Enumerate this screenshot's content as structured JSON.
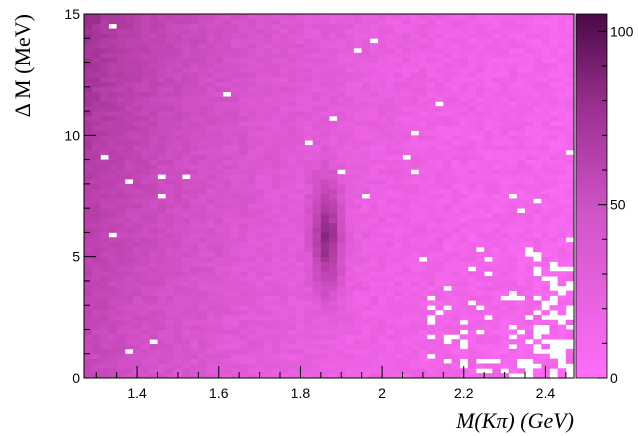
{
  "chart_data": {
    "type": "heatmap",
    "title": "",
    "xlabel": "M(Kπ) (GeV)",
    "ylabel": "Δ M (MeV)",
    "xlim": [
      1.27,
      2.47
    ],
    "ylim": [
      0,
      15
    ],
    "x_ticks": [
      "1.4",
      "1.6",
      "1.8",
      "2",
      "2.2",
      "2.4"
    ],
    "x_tick_values": [
      1.4,
      1.6,
      1.8,
      2.0,
      2.2,
      2.4
    ],
    "y_ticks": [
      "0",
      "5",
      "10",
      "15"
    ],
    "y_tick_values": [
      0,
      5,
      10,
      15
    ],
    "z_range": [
      0,
      105
    ],
    "z_ticks": [
      "0",
      "50",
      "100"
    ],
    "z_tick_values": [
      0,
      50,
      100
    ],
    "colormap": {
      "low": "#ff6ef8",
      "mid": "#b53ea7",
      "high": "#4a0a45"
    },
    "bins": {
      "x_bins": 60,
      "y_bins": 75
    },
    "peak": {
      "x": 1.865,
      "y": 5.8,
      "z": 105
    },
    "grid": false,
    "legend": "none"
  }
}
